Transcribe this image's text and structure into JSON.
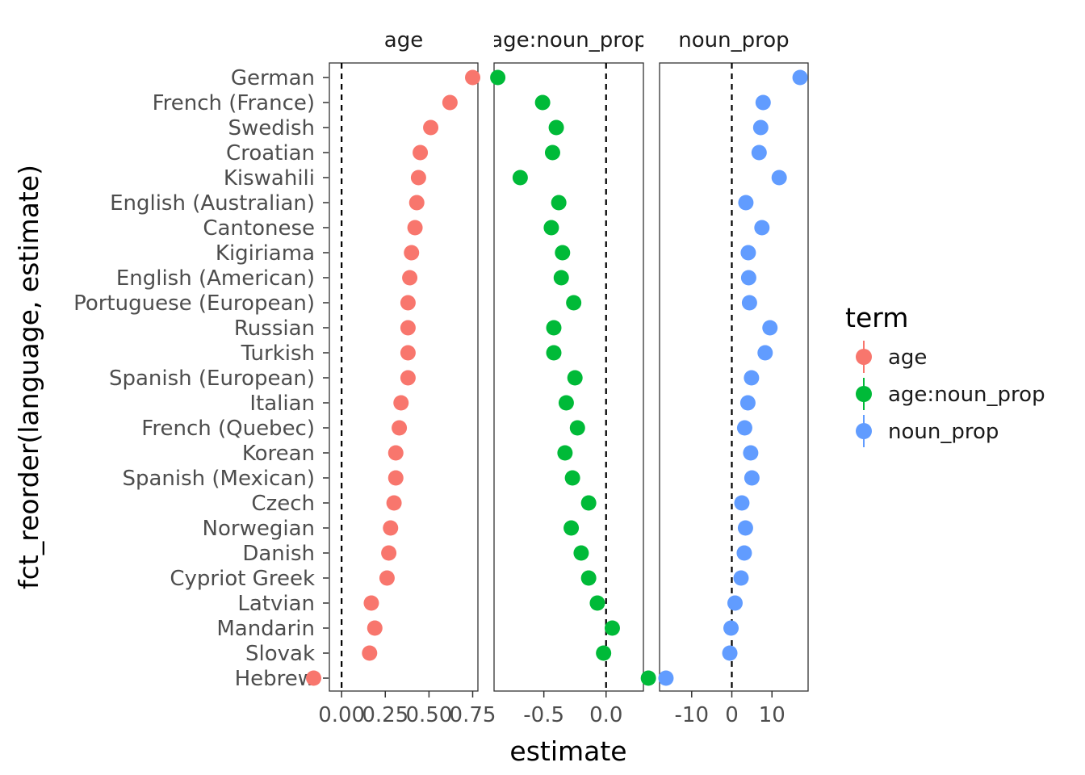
{
  "chart_data": {
    "type": "scatter",
    "facet_by": "term",
    "xlabel": "estimate",
    "ylabel": "fct_reorder(language, estimate)",
    "reference_line": {
      "x": 0,
      "style": "dashed"
    },
    "languages": [
      "German",
      "French (France)",
      "Swedish",
      "Croatian",
      "Kiswahili",
      "English (Australian)",
      "Cantonese",
      "Kigiriama",
      "English (American)",
      "Portuguese (European)",
      "Russian",
      "Turkish",
      "Spanish (European)",
      "Italian",
      "French (Quebec)",
      "Korean",
      "Spanish (Mexican)",
      "Czech",
      "Norwegian",
      "Danish",
      "Cypriot Greek",
      "Latvian",
      "Mandarin",
      "Slovak",
      "Hebrew"
    ],
    "legend": {
      "title": "term",
      "position": "right",
      "items": [
        {
          "label": "age",
          "color": "#F8766D"
        },
        {
          "label": "age:noun_prop",
          "color": "#00BA38"
        },
        {
          "label": "noun_prop",
          "color": "#619CFF"
        }
      ]
    },
    "panels": [
      {
        "strip": "age",
        "color": "#F8766D",
        "xlim": [
          -0.07,
          0.78
        ],
        "ticks": [
          0.0,
          0.25,
          0.5,
          0.75
        ],
        "tick_labels": [
          "0.00",
          "0.25",
          "0.50",
          "0.75"
        ],
        "values": [
          0.75,
          0.62,
          0.51,
          0.45,
          0.44,
          0.43,
          0.42,
          0.4,
          0.39,
          0.38,
          0.38,
          0.38,
          0.38,
          0.34,
          0.33,
          0.31,
          0.31,
          0.3,
          0.28,
          0.27,
          0.26,
          0.17,
          0.19,
          0.16,
          -0.16
        ]
      },
      {
        "strip": "age:noun_prop",
        "color": "#00BA38",
        "xlim": [
          -0.9,
          0.3
        ],
        "ticks": [
          -0.5,
          0.0
        ],
        "tick_labels": [
          "-0.5",
          "0.0"
        ],
        "values": [
          -0.87,
          -0.51,
          -0.4,
          -0.43,
          -0.69,
          -0.38,
          -0.44,
          -0.35,
          -0.36,
          -0.26,
          -0.42,
          -0.42,
          -0.25,
          -0.32,
          -0.23,
          -0.33,
          -0.27,
          -0.14,
          -0.28,
          -0.2,
          -0.14,
          -0.07,
          0.05,
          -0.02,
          0.34
        ]
      },
      {
        "strip": "noun_prop",
        "color": "#619CFF",
        "xlim": [
          -18,
          19
        ],
        "ticks": [
          -10,
          0,
          10
        ],
        "tick_labels": [
          "-10",
          "0",
          "10"
        ],
        "values": [
          17.0,
          7.8,
          7.2,
          6.8,
          11.8,
          3.5,
          7.5,
          4.1,
          4.2,
          4.4,
          9.5,
          8.3,
          4.9,
          4.0,
          3.2,
          4.7,
          5.0,
          2.5,
          3.4,
          3.1,
          2.3,
          0.8,
          -0.2,
          -0.5,
          -16.4
        ]
      }
    ]
  }
}
